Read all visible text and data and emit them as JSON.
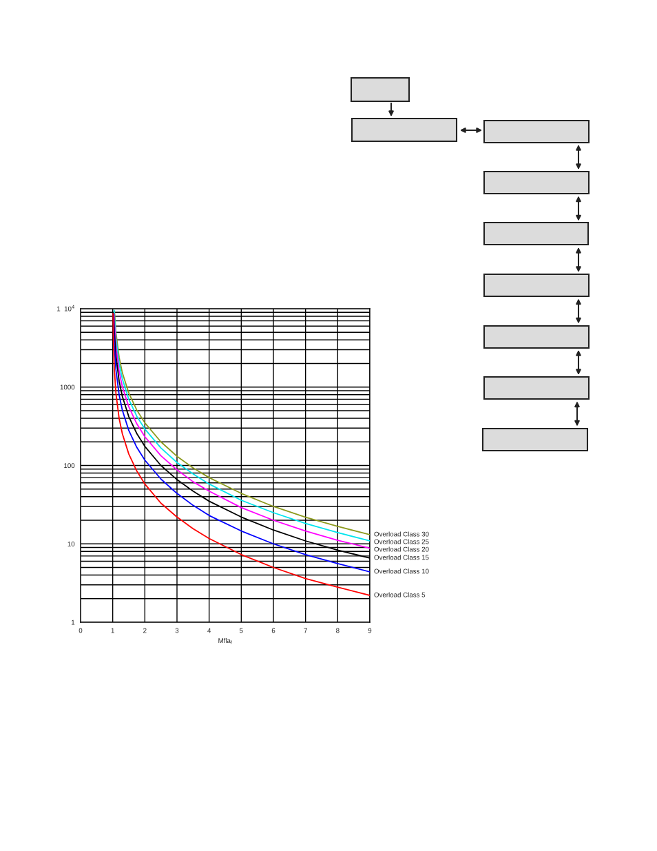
{
  "chart_data": {
    "type": "line",
    "xlabel": "Mfla$_{I}$",
    "log": "y",
    "grid": true,
    "legend": false,
    "marker": "none",
    "line_style": "solid",
    "xlim": [
      0,
      9
    ],
    "xticks": [
      0,
      1,
      2,
      3,
      4,
      5,
      6,
      7,
      8,
      9
    ],
    "ylim": [
      1,
      10000
    ],
    "yticks": [
      1,
      10,
      100,
      1000,
      {
        "value": 10000,
        "label": "1  10$^{4}$"
      }
    ],
    "series": [
      {
        "name": "Overload Class 30",
        "color": "#8c9a1e",
        "x": [
          1.055,
          1.1,
          1.2,
          1.3,
          1.5,
          1.75,
          2,
          2.5,
          3,
          3.5,
          4,
          5,
          6,
          7,
          8,
          9
        ],
        "values": [
          9290,
          5000,
          2390,
          1520,
          840,
          509,
          350,
          200,
          131,
          93,
          70,
          44,
          30,
          21.9,
          16.7,
          13.1
        ]
      },
      {
        "name": "Overload Class 25",
        "color": "#00e5ee",
        "x": [
          1.045,
          1.05,
          1.1,
          1.2,
          1.3,
          1.5,
          1.75,
          2,
          2.5,
          3,
          3.5,
          4,
          5,
          6,
          7,
          8,
          9
        ],
        "values": [
          9510,
          8540,
          4170,
          1990,
          1270,
          700,
          424,
          292,
          167,
          109,
          78,
          58,
          36,
          25,
          18.2,
          13.9,
          10.9
        ]
      },
      {
        "name": "Overload Class 20",
        "color": "#ff00ff",
        "x": [
          1.04,
          1.05,
          1.1,
          1.2,
          1.3,
          1.5,
          1.75,
          2,
          2.5,
          3,
          3.5,
          4,
          5,
          6,
          7,
          8,
          9
        ],
        "values": [
          8580,
          6830,
          3330,
          1590,
          1010,
          560,
          340,
          233,
          133,
          88,
          62,
          47,
          29,
          20,
          14.6,
          11.1,
          8.8
        ]
      },
      {
        "name": "Overload Class 15",
        "color": "#000000",
        "x": [
          1.03,
          1.05,
          1.1,
          1.2,
          1.3,
          1.5,
          1.75,
          2,
          2.5,
          3,
          3.5,
          4,
          5,
          6,
          7,
          8,
          9
        ],
        "values": [
          8620,
          5120,
          2500,
          1190,
          761,
          420,
          255,
          175,
          100,
          66,
          47,
          35,
          22,
          15,
          10.9,
          8.3,
          6.6
        ]
      },
      {
        "name": "Overload Class 10",
        "color": "#0000ff",
        "x": [
          1.02,
          1.05,
          1.1,
          1.2,
          1.3,
          1.5,
          1.75,
          2,
          2.5,
          3,
          3.5,
          4,
          5,
          6,
          7,
          8,
          9
        ],
        "values": [
          8660,
          3410,
          1670,
          795,
          507,
          280,
          170,
          117,
          67,
          44,
          31,
          23,
          14.6,
          10,
          7.3,
          5.6,
          4.4
        ]
      },
      {
        "name": "Overload Class 5",
        "color": "#ff0000",
        "x": [
          1.01,
          1.02,
          1.05,
          1.1,
          1.2,
          1.3,
          1.5,
          1.75,
          2,
          2.5,
          3,
          3.5,
          4,
          5,
          6,
          7,
          8,
          9
        ],
        "values": [
          8700,
          4330,
          1710,
          833,
          398,
          254,
          140,
          85,
          58,
          33,
          22,
          15.6,
          11.7,
          7.3,
          5.0,
          3.6,
          2.8,
          2.2
        ]
      }
    ]
  }
}
